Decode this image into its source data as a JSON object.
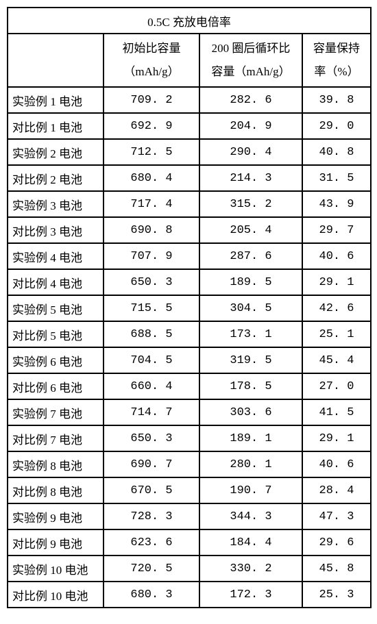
{
  "table": {
    "title": "0.5C 充放电倍率",
    "headers": {
      "blank": "",
      "col2_line1": "初始比容量",
      "col2_line2": "（mAh/g）",
      "col3_line1": "200 圈后循环比",
      "col3_line2": "容量（mAh/g）",
      "col4_line1": "容量保持",
      "col4_line2": "率（%）"
    },
    "rows": [
      {
        "label": "实验例 1 电池",
        "initial": "709. 2",
        "after200": "282. 6",
        "retention": "39. 8"
      },
      {
        "label": "对比例 1 电池",
        "initial": "692. 9",
        "after200": "204. 9",
        "retention": "29. 0"
      },
      {
        "label": "实验例 2 电池",
        "initial": "712. 5",
        "after200": "290. 4",
        "retention": "40. 8"
      },
      {
        "label": "对比例 2 电池",
        "initial": "680. 4",
        "after200": "214. 3",
        "retention": "31. 5"
      },
      {
        "label": "实验例 3 电池",
        "initial": "717. 4",
        "after200": "315. 2",
        "retention": "43. 9"
      },
      {
        "label": "对比例 3 电池",
        "initial": "690. 8",
        "after200": "205. 4",
        "retention": "29. 7"
      },
      {
        "label": "实验例 4 电池",
        "initial": "707. 9",
        "after200": "287. 6",
        "retention": "40. 6"
      },
      {
        "label": "对比例 4 电池",
        "initial": "650. 3",
        "after200": "189. 5",
        "retention": "29. 1"
      },
      {
        "label": "实验例 5 电池",
        "initial": "715. 5",
        "after200": "304. 5",
        "retention": "42. 6"
      },
      {
        "label": "对比例 5 电池",
        "initial": "688. 5",
        "after200": "173. 1",
        "retention": "25. 1"
      },
      {
        "label": "实验例 6 电池",
        "initial": "704. 5",
        "after200": "319. 5",
        "retention": "45. 4"
      },
      {
        "label": "对比例 6 电池",
        "initial": "660. 4",
        "after200": "178. 5",
        "retention": "27. 0"
      },
      {
        "label": "实验例 7 电池",
        "initial": "714. 7",
        "after200": "303. 6",
        "retention": "41. 5"
      },
      {
        "label": "对比例 7 电池",
        "initial": "650. 3",
        "after200": "189. 1",
        "retention": "29. 1"
      },
      {
        "label": "实验例 8 电池",
        "initial": "690. 7",
        "after200": "280. 1",
        "retention": "40. 6"
      },
      {
        "label": "对比例 8 电池",
        "initial": "670. 5",
        "after200": "190. 7",
        "retention": "28. 4"
      },
      {
        "label": "实验例 9 电池",
        "initial": "728. 3",
        "after200": "344. 3",
        "retention": "47. 3"
      },
      {
        "label": "对比例 9 电池",
        "initial": "623. 6",
        "after200": "184. 4",
        "retention": "29. 6"
      },
      {
        "label": "实验例 10 电池",
        "initial": "720. 5",
        "after200": "330. 2",
        "retention": "45. 8"
      },
      {
        "label": "对比例 10 电池",
        "initial": "680. 3",
        "after200": "172. 3",
        "retention": "25. 3"
      }
    ]
  }
}
